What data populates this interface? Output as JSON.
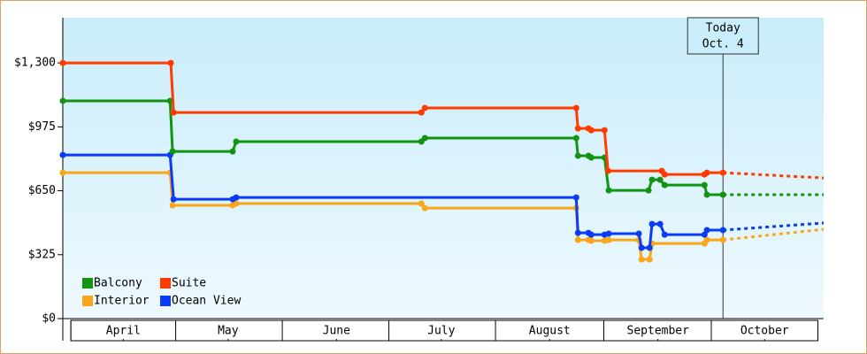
{
  "chart_data": {
    "type": "line",
    "xlim": [
      -2.3,
      215.4
    ],
    "xticks": [
      {
        "value": 15,
        "label": "April"
      },
      {
        "value": 45,
        "label": "May"
      },
      {
        "value": 76,
        "label": "June"
      },
      {
        "value": 106,
        "label": "July"
      },
      {
        "value": 137,
        "label": "August"
      },
      {
        "value": 168,
        "label": "September"
      },
      {
        "value": 198.5,
        "label": "October"
      }
    ],
    "ylim": [
      0,
      1530
    ],
    "yticks": [
      {
        "value": 0,
        "label": "$0"
      },
      {
        "value": 325,
        "label": "$325"
      },
      {
        "value": 650,
        "label": "$650"
      },
      {
        "value": 975,
        "label": "$975"
      },
      {
        "value": 1300,
        "label": "$1,300"
      }
    ],
    "annotation": {
      "x": 186.6,
      "lines": [
        "Today",
        "Oct. 4"
      ]
    },
    "series": [
      {
        "name": "Balcony",
        "color": "#129412",
        "x": [
          -2.3,
          28.4,
          29.1,
          46.3,
          47.3,
          100.3,
          101.3,
          144.6,
          145.1,
          148.1,
          148.9,
          152.7,
          153.9,
          165.3,
          166.3,
          168.6,
          169.9,
          181.3,
          182.0,
          186.6,
          215.4
        ],
        "values": [
          1107,
          1107,
          850,
          850,
          900,
          900,
          918,
          918,
          828,
          828,
          819,
          819,
          652,
          652,
          706,
          706,
          679,
          679,
          630,
          630,
          630
        ]
      },
      {
        "name": "Suite",
        "color": "#ff3b00",
        "x": [
          -2.3,
          28.6,
          29.4,
          100.3,
          101.3,
          144.6,
          145.1,
          148.1,
          148.9,
          152.7,
          153.7,
          169.1,
          169.9,
          181.3,
          182.0,
          186.6,
          215.4
        ],
        "values": [
          1300,
          1300,
          1048,
          1048,
          1071,
          1071,
          967,
          967,
          958,
          958,
          751,
          751,
          733,
          733,
          742,
          742,
          715
        ]
      },
      {
        "name": "Interior",
        "color": "#f9a61a",
        "x": [
          -2.3,
          28.4,
          29.1,
          46.3,
          47.3,
          100.3,
          101.3,
          144.6,
          145.1,
          148.1,
          148.9,
          152.7,
          153.9,
          162.5,
          163.3,
          165.6,
          166.3,
          181.3,
          182.0,
          186.6,
          215.4
        ],
        "values": [
          742,
          742,
          576,
          576,
          585,
          585,
          562,
          562,
          400,
          400,
          396,
          396,
          400,
          400,
          301,
          301,
          382,
          382,
          400,
          400,
          454
        ]
      },
      {
        "name": "Ocean View",
        "color": "#0a3cf5",
        "x": [
          -2.3,
          28.4,
          29.4,
          46.3,
          47.3,
          144.6,
          145.1,
          148.1,
          148.9,
          152.7,
          153.9,
          162.5,
          163.3,
          165.6,
          166.3,
          168.6,
          169.9,
          181.3,
          182.0,
          186.6,
          215.4
        ],
        "values": [
          832,
          832,
          607,
          607,
          616,
          616,
          436,
          436,
          427,
          427,
          432,
          432,
          360,
          360,
          481,
          481,
          427,
          427,
          450,
          450,
          486
        ]
      }
    ]
  }
}
